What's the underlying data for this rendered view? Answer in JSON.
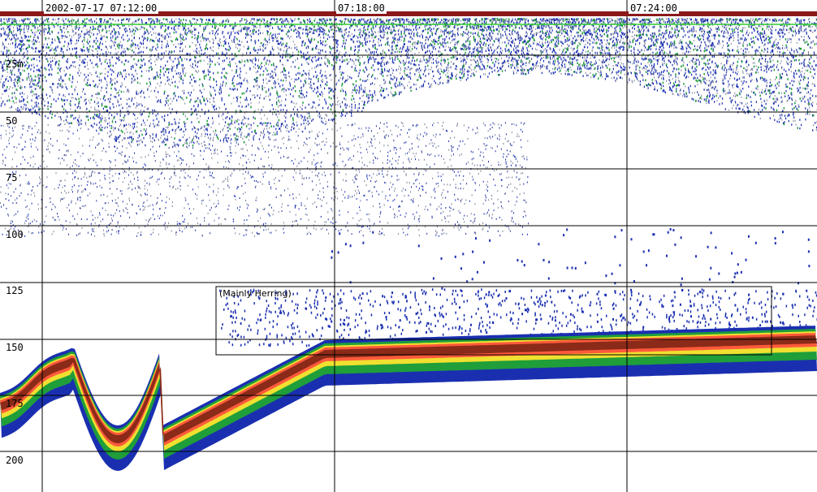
{
  "time_axis": {
    "labels": [
      "2002-07-17 07:12:00",
      "07:18:00",
      "07:24:00"
    ]
  },
  "depth_axis": {
    "unit": "m",
    "labels": [
      "25m",
      "50",
      "75",
      "100",
      "125",
      "150",
      "175",
      "200"
    ]
  },
  "annotation": {
    "text": "(Mainly Herring)"
  },
  "colors": {
    "background": "#ffffff",
    "grid": "#000000",
    "header_bar": "#8b1a1a",
    "surface_line": "#33cc33",
    "weak_echo": "#1a2fb0",
    "medium_echo": "#1f9e3a",
    "strong_echo": "#f0e030",
    "stronger_echo": "#ff5a3c",
    "bottom_echo": "#8b2a18"
  }
}
